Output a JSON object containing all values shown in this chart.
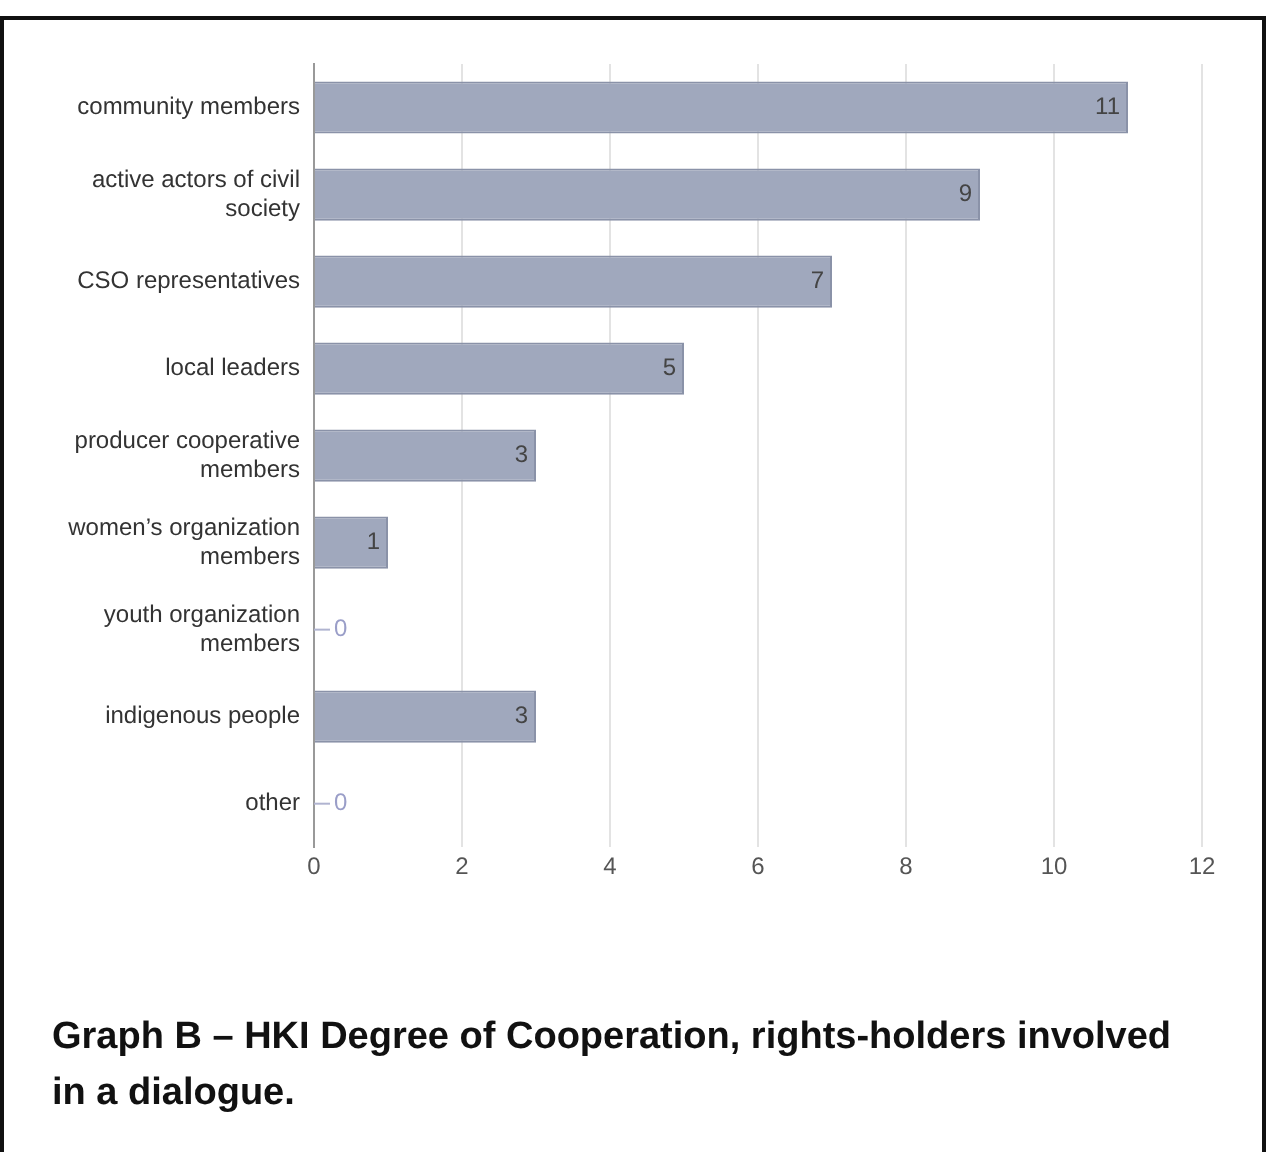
{
  "chart_data": {
    "type": "bar",
    "orientation": "horizontal",
    "title": "Graph B – HKI Degree of Cooperation, rights-holders involved in a dialogue.",
    "categories": [
      "community members",
      "active actors of civil society",
      "CSO representatives",
      "local leaders",
      "producer cooperative members",
      "women’s organization members",
      "youth organization members",
      "indigenous people",
      "other"
    ],
    "values": [
      11,
      9,
      7,
      5,
      3,
      1,
      0,
      3,
      0
    ],
    "color": "#a0a8bd",
    "xlim": [
      0,
      12
    ],
    "xticks": [
      0,
      2,
      4,
      6,
      8,
      10,
      12
    ],
    "grid": "x",
    "data_labels": true,
    "legend": false
  }
}
